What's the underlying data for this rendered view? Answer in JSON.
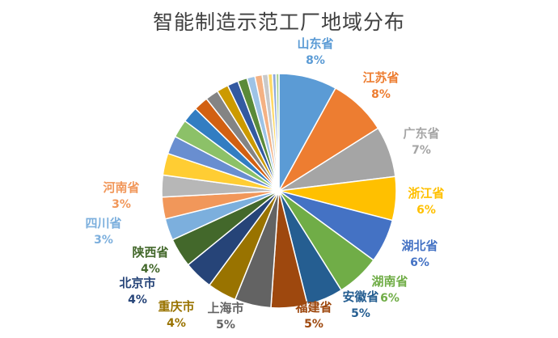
{
  "chart_data": {
    "type": "pie",
    "title": "智能制造示范工厂地域分布",
    "start_angle_deg": -90,
    "direction": "clockwise",
    "slices": [
      {
        "name": "山东省",
        "value": 8,
        "label": "8%",
        "color": "#5B9BD5"
      },
      {
        "name": "江苏省",
        "value": 8,
        "label": "8%",
        "color": "#ED7D31"
      },
      {
        "name": "广东省",
        "value": 7,
        "label": "7%",
        "color": "#A5A5A5"
      },
      {
        "name": "浙江省",
        "value": 6,
        "label": "6%",
        "color": "#FFC000"
      },
      {
        "name": "湖北省",
        "value": 6,
        "label": "6%",
        "color": "#4472C4"
      },
      {
        "name": "湖南省",
        "value": 6,
        "label": "6%",
        "color": "#70AD47"
      },
      {
        "name": "安徽省",
        "value": 5,
        "label": "5%",
        "color": "#255E91"
      },
      {
        "name": "福建省",
        "value": 5,
        "label": "5%",
        "color": "#9E480E"
      },
      {
        "name": "上海市",
        "value": 5,
        "label": "5%",
        "color": "#636363"
      },
      {
        "name": "重庆市",
        "value": 4,
        "label": "4%",
        "color": "#997300"
      },
      {
        "name": "北京市",
        "value": 4,
        "label": "4%",
        "color": "#264478"
      },
      {
        "name": "陕西省",
        "value": 4,
        "label": "4%",
        "color": "#43682B"
      },
      {
        "name": "四川省",
        "value": 3,
        "label": "3%",
        "color": "#7CAFDD"
      },
      {
        "name": "河南省",
        "value": 3,
        "label": "3%",
        "color": "#F1975A"
      },
      {
        "name": "",
        "value": 3,
        "color": "#B7B7B7"
      },
      {
        "name": "",
        "value": 3,
        "color": "#FFCD33"
      },
      {
        "name": "",
        "value": 2.5,
        "color": "#698ED0"
      },
      {
        "name": "",
        "value": 2.5,
        "color": "#8CC168"
      },
      {
        "name": "",
        "value": 2.2,
        "color": "#327DC2"
      },
      {
        "name": "",
        "value": 2,
        "color": "#D26012"
      },
      {
        "name": "",
        "value": 1.8,
        "color": "#848484"
      },
      {
        "name": "",
        "value": 1.6,
        "color": "#CC9A00"
      },
      {
        "name": "",
        "value": 1.5,
        "color": "#335AA1"
      },
      {
        "name": "",
        "value": 1.3,
        "color": "#5A8A39"
      },
      {
        "name": "",
        "value": 1.1,
        "color": "#9DC3E6"
      },
      {
        "name": "",
        "value": 1,
        "color": "#F4B183"
      },
      {
        "name": "",
        "value": 0.8,
        "color": "#C9C9C9"
      },
      {
        "name": "",
        "value": 0.6,
        "color": "#FFD966"
      },
      {
        "name": "",
        "value": 0.5,
        "color": "#8FAADC"
      },
      {
        "name": "",
        "value": 0.4,
        "color": "#A9D18E"
      }
    ]
  }
}
